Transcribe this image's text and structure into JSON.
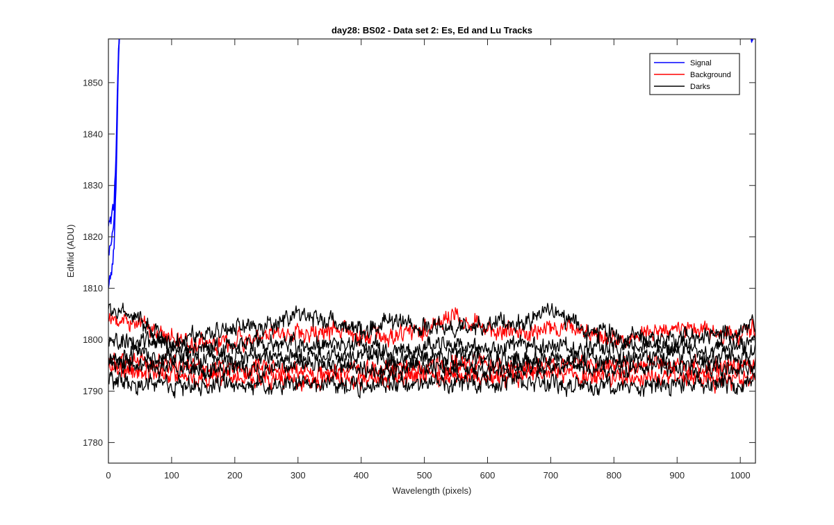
{
  "chart_data": {
    "type": "line",
    "title": "day28: BS02 - Data set 2: Es, Ed and Lu Tracks",
    "xlabel": "Wavelength (pixels)",
    "ylabel": "EdMid (ADU)",
    "xlim": [
      0,
      1024
    ],
    "ylim": [
      1776,
      1858.5
    ],
    "xticks": [
      0,
      100,
      200,
      300,
      400,
      500,
      600,
      700,
      800,
      900,
      1000
    ],
    "yticks": [
      1780,
      1790,
      1800,
      1810,
      1820,
      1830,
      1840,
      1850
    ],
    "grid": false,
    "legend_position": "top-right",
    "legend": [
      {
        "label": "Signal",
        "color": "#0000ff"
      },
      {
        "label": "Background",
        "color": "#ff0000"
      },
      {
        "label": "Darks",
        "color": "#000000"
      }
    ],
    "series": [
      {
        "group": "Signal",
        "color": "#0000ff",
        "x": [
          0,
          3,
          6,
          9,
          12,
          14,
          16,
          18
        ],
        "y": [
          1810.5,
          1812,
          1814,
          1818,
          1830,
          1843,
          1855,
          1860
        ]
      },
      {
        "group": "Signal",
        "color": "#0000ff",
        "x": [
          0,
          3,
          6,
          9,
          12,
          14,
          16,
          18
        ],
        "y": [
          1817,
          1818,
          1820,
          1823,
          1832,
          1845,
          1856,
          1860
        ]
      },
      {
        "group": "Signal",
        "color": "#0000ff",
        "x": [
          0,
          3,
          6,
          9,
          12,
          14,
          16,
          18
        ],
        "y": [
          1822.5,
          1823,
          1824.5,
          1827,
          1835,
          1848,
          1857,
          1860
        ]
      },
      {
        "group": "Signal",
        "color": "#0000ff",
        "x": [
          1015,
          1018,
          1020
        ],
        "y": [
          1860,
          1858.5,
          1857.5
        ]
      },
      {
        "group": "Background",
        "color": "#ff0000",
        "x": [
          0,
          50,
          100,
          150,
          200,
          250,
          300,
          350,
          400,
          450,
          500,
          550,
          600,
          650,
          700,
          750,
          800,
          850,
          900,
          950,
          1000,
          1024
        ],
        "y": [
          1803.5,
          1803.5,
          1800,
          1799,
          1799.5,
          1801,
          1801.5,
          1802,
          1800.5,
          1801,
          1802,
          1805,
          1802,
          1801,
          1802.5,
          1801.5,
          1800,
          1801.5,
          1802,
          1801.5,
          1801,
          1802
        ]
      },
      {
        "group": "Background",
        "color": "#ff0000",
        "x": [
          0,
          50,
          100,
          150,
          200,
          250,
          300,
          350,
          400,
          450,
          500,
          550,
          600,
          650,
          700,
          750,
          800,
          850,
          900,
          950,
          1000,
          1024
        ],
        "y": [
          1796,
          1796,
          1795,
          1794,
          1794.5,
          1795,
          1794,
          1793.5,
          1794,
          1794.5,
          1794,
          1795,
          1795.5,
          1794.5,
          1795,
          1795,
          1794.5,
          1795,
          1795,
          1794.5,
          1795,
          1795.5
        ]
      },
      {
        "group": "Background",
        "color": "#ff0000",
        "x": [
          0,
          50,
          100,
          150,
          200,
          250,
          300,
          350,
          400,
          450,
          500,
          550,
          600,
          650,
          700,
          750,
          800,
          850,
          900,
          950,
          1000,
          1024
        ],
        "y": [
          1794,
          1793.5,
          1793,
          1792.5,
          1793,
          1792.5,
          1792,
          1792,
          1792.5,
          1792.5,
          1793,
          1793,
          1792.5,
          1793,
          1793.5,
          1793,
          1792.5,
          1792.5,
          1793,
          1792.5,
          1792.5,
          1793
        ]
      },
      {
        "group": "Darks",
        "color": "#000000",
        "x": [
          0,
          50,
          100,
          150,
          200,
          250,
          300,
          350,
          400,
          450,
          500,
          550,
          600,
          650,
          700,
          750,
          800,
          850,
          900,
          950,
          1000,
          1024
        ],
        "y": [
          1805.5,
          1804.5,
          1799,
          1801,
          1803,
          1802.5,
          1805,
          1803.5,
          1802,
          1803,
          1802.5,
          1802,
          1803,
          1803,
          1806,
          1802,
          1801,
          1800.5,
          1800,
          1800.5,
          1801.5,
          1803
        ]
      },
      {
        "group": "Darks",
        "color": "#000000",
        "x": [
          0,
          50,
          100,
          150,
          200,
          250,
          300,
          350,
          400,
          450,
          500,
          550,
          600,
          650,
          700,
          750,
          800,
          850,
          900,
          950,
          1000,
          1024
        ],
        "y": [
          1799.5,
          1800,
          1798.5,
          1798,
          1799,
          1799.5,
          1799,
          1799.5,
          1799,
          1798,
          1798.5,
          1798.5,
          1798,
          1799,
          1798.5,
          1798,
          1798.5,
          1799,
          1798.5,
          1798,
          1798.5,
          1799.5
        ]
      },
      {
        "group": "Darks",
        "color": "#000000",
        "x": [
          0,
          50,
          100,
          150,
          200,
          250,
          300,
          350,
          400,
          450,
          500,
          550,
          600,
          650,
          700,
          750,
          800,
          850,
          900,
          950,
          1000,
          1024
        ],
        "y": [
          1797,
          1797.5,
          1796.5,
          1796,
          1797,
          1796.5,
          1797,
          1796.5,
          1796.5,
          1796,
          1796.5,
          1797,
          1796.5,
          1796,
          1796.5,
          1796.5,
          1796,
          1796.5,
          1797,
          1796.5,
          1796.5,
          1797
        ]
      },
      {
        "group": "Darks",
        "color": "#000000",
        "x": [
          0,
          50,
          100,
          150,
          200,
          250,
          300,
          350,
          400,
          450,
          500,
          550,
          600,
          650,
          700,
          750,
          800,
          850,
          900,
          950,
          1000,
          1024
        ],
        "y": [
          1795.5,
          1795,
          1794.5,
          1794,
          1794.5,
          1794.5,
          1795,
          1795,
          1794,
          1794,
          1794.5,
          1794.5,
          1794,
          1794.5,
          1795,
          1794.5,
          1794,
          1794.5,
          1795,
          1794.5,
          1794.5,
          1795
        ]
      },
      {
        "group": "Darks",
        "color": "#000000",
        "x": [
          0,
          50,
          100,
          150,
          200,
          250,
          300,
          350,
          400,
          450,
          500,
          550,
          600,
          650,
          700,
          750,
          800,
          850,
          900,
          950,
          1000,
          1024
        ],
        "y": [
          1792.5,
          1791.5,
          1791,
          1791,
          1791.5,
          1791,
          1792,
          1791.5,
          1791,
          1791.5,
          1792,
          1791.5,
          1791.5,
          1792,
          1791.5,
          1791,
          1790.5,
          1791,
          1791.5,
          1791.5,
          1791,
          1792
        ]
      }
    ]
  }
}
